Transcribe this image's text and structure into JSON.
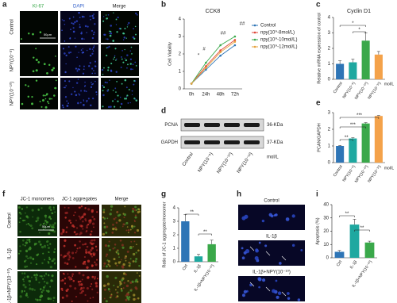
{
  "figure": {
    "panel_labels": [
      "a",
      "b",
      "c",
      "d",
      "e",
      "f",
      "g",
      "h",
      "i"
    ],
    "panel_a": {
      "columns": [
        "KI-67",
        "DAPI",
        "Merge"
      ],
      "rows": [
        "Control",
        "NPY(10⁻⁸)",
        "NPY(10⁻¹⁰)"
      ],
      "scale_bar": "50μm"
    },
    "panel_d": {
      "bands": [
        "PCNA",
        "GAPDH"
      ],
      "sizes": [
        "36-KDa",
        "37-KDa"
      ],
      "lanes": [
        "Control",
        "NPY(10⁻⁸)",
        "NPY(10⁻¹⁰)",
        "NPY(10⁻¹²)"
      ],
      "unit": "mol/L"
    },
    "panel_f": {
      "columns": [
        "JC-1 monomers",
        "JC-1 aggregates",
        "Merge"
      ],
      "rows": [
        "Control",
        "IL-1β",
        "IL-1β+NPY(10⁻¹⁰)"
      ],
      "scale_bar": "50μm"
    },
    "panel_h": {
      "rows": [
        "Control",
        "IL-1β",
        "IL-1β+NPY(10⁻¹⁰)"
      ]
    }
  },
  "chart_data": [
    {
      "type": "line",
      "title": "CCK8",
      "ylabel": "Cell Viability",
      "categories": [
        "0h",
        "24h",
        "48h",
        "72h"
      ],
      "series": [
        {
          "name": "Control",
          "color": "#2e75b6",
          "values": [
            0.3,
            1.1,
            1.9,
            2.5
          ]
        },
        {
          "name": "npy(10^-8mol/L)",
          "color": "#e0483a",
          "values": [
            0.3,
            1.3,
            2.2,
            2.8
          ]
        },
        {
          "name": "npy(10^-10mol/L)",
          "color": "#3aa84a",
          "values": [
            0.3,
            1.5,
            2.5,
            3.0
          ]
        },
        {
          "name": "npy(10^-12mol/L)",
          "color": "#e6a23c",
          "values": [
            0.3,
            1.2,
            2.1,
            2.7
          ]
        }
      ],
      "ylim": [
        0,
        4
      ],
      "yticks": [
        0,
        1,
        2,
        3,
        4
      ],
      "legend": "right",
      "annotations": [
        "*",
        "#",
        "##",
        "##"
      ]
    },
    {
      "type": "bar",
      "title": "Cyclin D1",
      "ylabel": "Relative mRNA expression of control",
      "categories": [
        "Control",
        "NPY(10⁻⁸)",
        "NPY(10⁻¹⁰)",
        "NPY(10⁻¹²)"
      ],
      "values": [
        1.0,
        1.1,
        2.5,
        1.6
      ],
      "errors": [
        0.2,
        0.2,
        0.5,
        0.2
      ],
      "colors": [
        "#2e75b6",
        "#1fa8a0",
        "#3aa84a",
        "#f4a24a"
      ],
      "ylim": [
        0,
        4
      ],
      "yticks": [
        0,
        1,
        2,
        3,
        4
      ],
      "unit_label": "mol/L",
      "annotations": [
        "*",
        "*"
      ]
    },
    {
      "type": "bar",
      "ylabel": "PCAN/GAPDH",
      "categories": [
        "Control",
        "NPY(10⁻⁸)",
        "NPY(10⁻¹⁰)",
        "NPY(10⁻¹²)"
      ],
      "values": [
        1.0,
        1.45,
        2.35,
        2.8
      ],
      "errors": [
        0.03,
        0.04,
        0.05,
        0.03
      ],
      "colors": [
        "#2e75b6",
        "#1fa8a0",
        "#3aa84a",
        "#f4a24a"
      ],
      "ylim": [
        0,
        3
      ],
      "yticks": [
        0,
        1,
        2,
        3
      ],
      "unit_label": "mol/L",
      "annotations": [
        "**",
        "***",
        "***"
      ]
    },
    {
      "type": "bar",
      "ylabel": "Ratio of JC-1 aggregate/monomer",
      "categories": [
        "Ctrl",
        "IL-1β",
        "IL-1β+NPY(10⁻¹⁰)"
      ],
      "values": [
        3.0,
        0.4,
        1.3
      ],
      "errors": [
        0.5,
        0.15,
        0.3
      ],
      "colors": [
        "#2e75b6",
        "#1fa8a0",
        "#3aa84a"
      ],
      "ylim": [
        0,
        4
      ],
      "yticks": [
        0,
        1,
        2,
        3,
        4
      ],
      "annotations": [
        "**",
        "**"
      ]
    },
    {
      "type": "bar",
      "ylabel": "Apoptosis (%)",
      "categories": [
        "Ctrl",
        "IL-1β",
        "IL-1β+NPY(10⁻¹⁰)"
      ],
      "values": [
        4.5,
        25,
        11.5
      ],
      "errors": [
        1,
        4,
        1
      ],
      "colors": [
        "#2e75b6",
        "#1fa8a0",
        "#3aa84a"
      ],
      "ylim": [
        0,
        40
      ],
      "yticks": [
        0,
        10,
        20,
        30,
        40
      ],
      "annotations": [
        "**",
        "**"
      ]
    }
  ]
}
